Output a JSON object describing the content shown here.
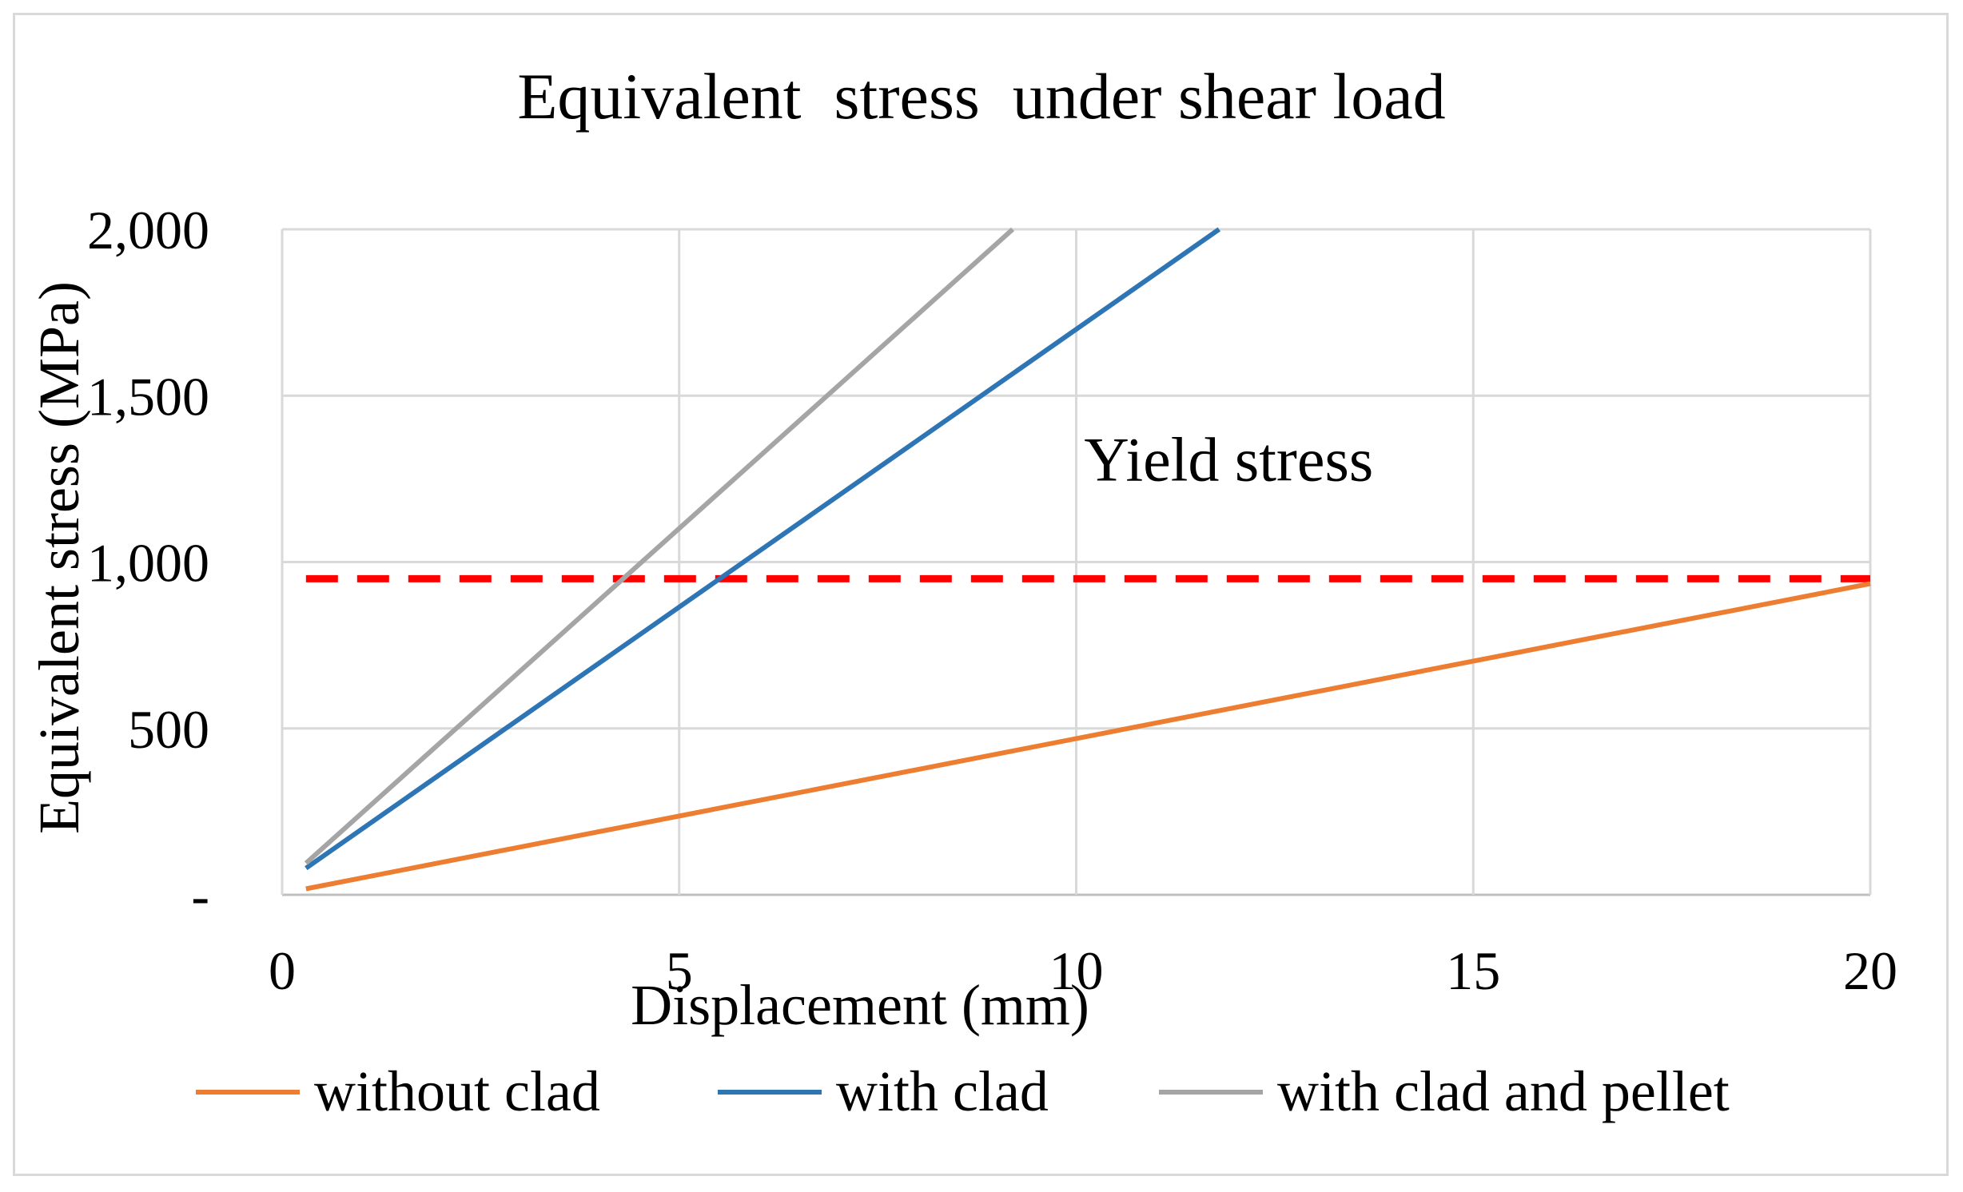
{
  "chart_data": {
    "type": "line",
    "title": "Equivalent  stress  under shear load",
    "xlabel": "Displacement (mm)",
    "ylabel": "Equivalent stress (MPa)",
    "xlim": [
      0,
      20
    ],
    "ylim": [
      0,
      2000
    ],
    "x_ticks": [
      {
        "value": 0,
        "label": "0"
      },
      {
        "value": 5,
        "label": "5"
      },
      {
        "value": 10,
        "label": "10"
      },
      {
        "value": 15,
        "label": "15"
      },
      {
        "value": 20,
        "label": "20"
      }
    ],
    "y_ticks": [
      {
        "value": 0,
        "label": "-"
      },
      {
        "value": 500,
        "label": "500"
      },
      {
        "value": 1000,
        "label": "1,000"
      },
      {
        "value": 1500,
        "label": "1,500"
      },
      {
        "value": 2000,
        "label": "2,000"
      }
    ],
    "grid": true,
    "legend_position": "bottom",
    "series": [
      {
        "name": "without clad",
        "color": "#ed7d31",
        "points": [
          [
            0.3,
            18
          ],
          [
            20,
            935
          ]
        ]
      },
      {
        "name": "with clad",
        "color": "#2e75b6",
        "points": [
          [
            0.3,
            80
          ],
          [
            11.8,
            2000
          ]
        ]
      },
      {
        "name": "with clad and pellet",
        "color": "#a5a5a5",
        "points": [
          [
            0.3,
            95
          ],
          [
            9.2,
            2000
          ]
        ]
      }
    ],
    "reference_line": {
      "name": "Yield stress",
      "value": 950,
      "color": "#ff0000",
      "style": "dashed"
    },
    "annotations": [
      {
        "text": "Yield stress",
        "x": 10.1,
        "y": 1245
      }
    ]
  }
}
